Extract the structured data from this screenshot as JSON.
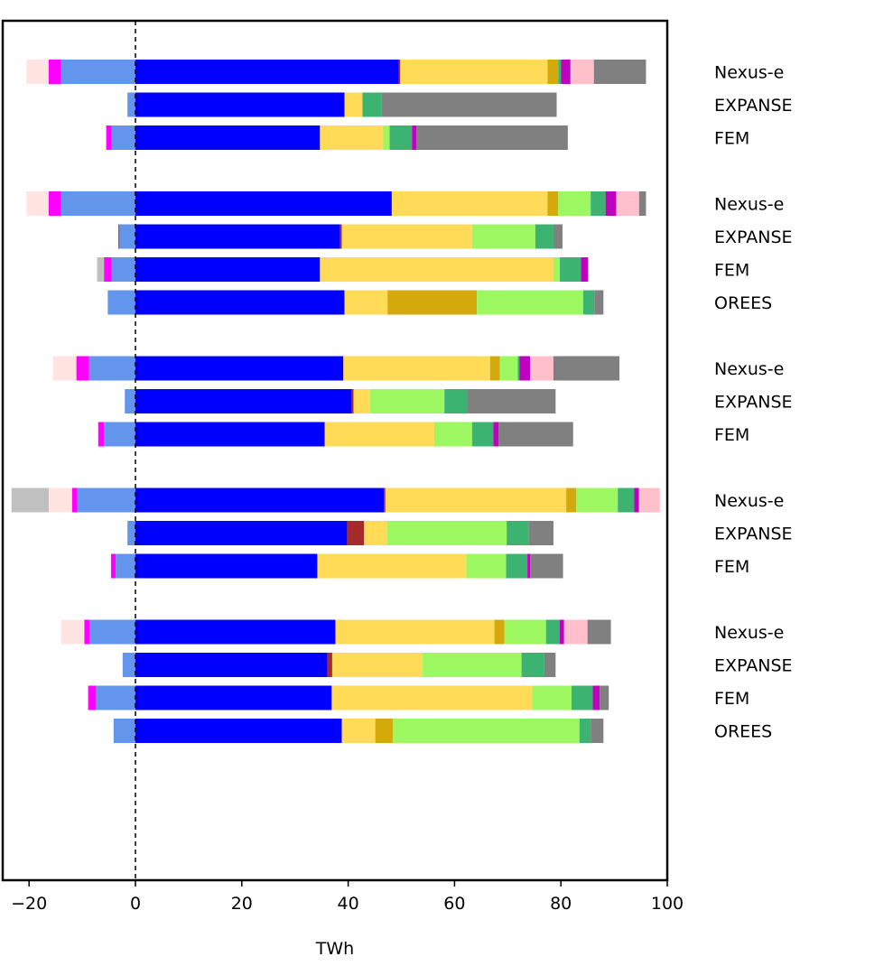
{
  "chart_data": {
    "type": "bar",
    "orientation": "horizontal",
    "stacked": true,
    "title": "",
    "xlabel": "TWh",
    "ylabel": "",
    "xlim": [
      -25,
      100
    ],
    "xticks": [
      -20,
      0,
      20,
      40,
      60,
      80,
      100
    ],
    "xtick_labels": [
      "−20",
      "0",
      "20",
      "40",
      "60",
      "80",
      "100"
    ],
    "reference_line": 0,
    "grid": false,
    "legend": null,
    "rows": [
      {
        "label": "Nexus-e",
        "group": 1,
        "segments": [
          [
            -20.5,
            -16.3,
            "#ffe4e1"
          ],
          [
            -16.3,
            -14.0,
            "#ff00ff"
          ],
          [
            -14.0,
            0,
            "#6495ed"
          ],
          [
            0,
            49.5,
            "#0000ff"
          ],
          [
            49.5,
            49.8,
            "#a52a2a"
          ],
          [
            49.8,
            77.5,
            "#ffdb58"
          ],
          [
            77.5,
            79.5,
            "#d4a90c"
          ],
          [
            79.5,
            80.0,
            "#3cb371"
          ],
          [
            80.0,
            81.8,
            "#bf00bf"
          ],
          [
            81.8,
            86.2,
            "#ffc0cb"
          ],
          [
            86.2,
            96.0,
            "#808080"
          ]
        ]
      },
      {
        "label": "EXPANSE",
        "group": 1,
        "segments": [
          [
            -1.5,
            0,
            "#6495ed"
          ],
          [
            0,
            39.3,
            "#0000ff"
          ],
          [
            39.3,
            42.7,
            "#ffdb58"
          ],
          [
            42.7,
            46.3,
            "#3cb371"
          ],
          [
            46.3,
            79.2,
            "#808080"
          ]
        ]
      },
      {
        "label": "FEM",
        "group": 1,
        "segments": [
          [
            -5.5,
            -4.5,
            "#ff00ff"
          ],
          [
            -4.5,
            0,
            "#6495ed"
          ],
          [
            0,
            34.7,
            "#0000ff"
          ],
          [
            34.7,
            46.6,
            "#ffdb58"
          ],
          [
            46.6,
            47.8,
            "#9cf760"
          ],
          [
            47.8,
            52.0,
            "#3cb371"
          ],
          [
            52.0,
            52.8,
            "#bf00bf"
          ],
          [
            52.8,
            81.3,
            "#808080"
          ]
        ]
      },
      {
        "label": "Nexus-e",
        "group": 2,
        "segments": [
          [
            -20.5,
            -16.3,
            "#ffe4e1"
          ],
          [
            -16.3,
            -14.0,
            "#ff00ff"
          ],
          [
            -14.0,
            0,
            "#6495ed"
          ],
          [
            0,
            48.2,
            "#0000ff"
          ],
          [
            48.2,
            77.5,
            "#ffdb58"
          ],
          [
            77.5,
            79.5,
            "#d4a90c"
          ],
          [
            79.5,
            85.6,
            "#9cf760"
          ],
          [
            85.6,
            88.4,
            "#3cb371"
          ],
          [
            88.4,
            90.4,
            "#bf00bf"
          ],
          [
            90.4,
            94.7,
            "#ffc0cb"
          ],
          [
            94.7,
            96.0,
            "#808080"
          ]
        ]
      },
      {
        "label": "EXPANSE",
        "group": 2,
        "segments": [
          [
            -3.2,
            -3.0,
            "#a52a2a"
          ],
          [
            -3.0,
            0,
            "#6495ed"
          ],
          [
            0,
            38.5,
            "#0000ff"
          ],
          [
            38.5,
            38.8,
            "#a52a2a"
          ],
          [
            38.8,
            63.3,
            "#ffdb58"
          ],
          [
            63.3,
            75.2,
            "#9cf760"
          ],
          [
            75.2,
            78.6,
            "#3cb371"
          ],
          [
            78.6,
            80.3,
            "#808080"
          ]
        ]
      },
      {
        "label": "FEM",
        "group": 2,
        "segments": [
          [
            -7.2,
            -5.9,
            "#c0c0c0"
          ],
          [
            -5.9,
            -4.5,
            "#ff00ff"
          ],
          [
            -4.5,
            0,
            "#6495ed"
          ],
          [
            0,
            34.7,
            "#0000ff"
          ],
          [
            34.7,
            78.6,
            "#ffdb58"
          ],
          [
            78.6,
            79.8,
            "#9cf760"
          ],
          [
            79.8,
            83.8,
            "#3cb371"
          ],
          [
            83.8,
            85.1,
            "#bf00bf"
          ]
        ]
      },
      {
        "label": "OREES",
        "group": 2,
        "segments": [
          [
            -5.2,
            0,
            "#6495ed"
          ],
          [
            0,
            39.3,
            "#0000ff"
          ],
          [
            39.3,
            47.4,
            "#ffdb58"
          ],
          [
            47.4,
            64.2,
            "#d4a90c"
          ],
          [
            64.2,
            84.2,
            "#9cf760"
          ],
          [
            84.2,
            86.3,
            "#3cb371"
          ],
          [
            86.3,
            88.0,
            "#808080"
          ]
        ]
      },
      {
        "label": "Nexus-e",
        "group": 3,
        "segments": [
          [
            -15.5,
            -11.1,
            "#ffe4e1"
          ],
          [
            -11.1,
            -8.7,
            "#ff00ff"
          ],
          [
            -8.7,
            0,
            "#6495ed"
          ],
          [
            0,
            39.1,
            "#0000ff"
          ],
          [
            39.1,
            66.7,
            "#ffdb58"
          ],
          [
            66.7,
            68.5,
            "#d4a90c"
          ],
          [
            68.5,
            71.9,
            "#9cf760"
          ],
          [
            71.9,
            72.2,
            "#3cb371"
          ],
          [
            72.2,
            74.2,
            "#bf00bf"
          ],
          [
            74.2,
            78.6,
            "#ffc0cb"
          ],
          [
            78.6,
            91.0,
            "#808080"
          ]
        ]
      },
      {
        "label": "EXPANSE",
        "group": 3,
        "segments": [
          [
            -2.0,
            0,
            "#6495ed"
          ],
          [
            0,
            40.7,
            "#0000ff"
          ],
          [
            40.7,
            41.0,
            "#a52a2a"
          ],
          [
            41.0,
            44.1,
            "#ffdb58"
          ],
          [
            44.1,
            58.1,
            "#9cf760"
          ],
          [
            58.1,
            62.4,
            "#3cb371"
          ],
          [
            62.4,
            79.0,
            "#808080"
          ]
        ]
      },
      {
        "label": "FEM",
        "group": 3,
        "segments": [
          [
            -7.0,
            -5.9,
            "#ff00ff"
          ],
          [
            -5.9,
            0,
            "#6495ed"
          ],
          [
            0,
            35.6,
            "#0000ff"
          ],
          [
            35.6,
            56.2,
            "#ffdb58"
          ],
          [
            56.2,
            63.3,
            "#9cf760"
          ],
          [
            63.3,
            67.3,
            "#3cb371"
          ],
          [
            67.3,
            68.3,
            "#bf00bf"
          ],
          [
            68.3,
            82.3,
            "#808080"
          ]
        ]
      },
      {
        "label": "Nexus-e",
        "group": 4,
        "segments": [
          [
            -23.3,
            -16.3,
            "#c0c0c0"
          ],
          [
            -16.3,
            -11.9,
            "#ffe4e1"
          ],
          [
            -11.9,
            -10.9,
            "#ff00ff"
          ],
          [
            -10.9,
            0,
            "#6495ed"
          ],
          [
            0,
            46.7,
            "#0000ff"
          ],
          [
            46.7,
            47.0,
            "#a52a2a"
          ],
          [
            47.0,
            81.0,
            "#ffdb58"
          ],
          [
            81.0,
            82.9,
            "#d4a90c"
          ],
          [
            82.9,
            90.7,
            "#9cf760"
          ],
          [
            90.7,
            93.8,
            "#3cb371"
          ],
          [
            93.8,
            94.7,
            "#bf00bf"
          ],
          [
            94.7,
            98.6,
            "#ffc0cb"
          ]
        ]
      },
      {
        "label": "EXPANSE",
        "group": 4,
        "segments": [
          [
            -1.5,
            0,
            "#6495ed"
          ],
          [
            0,
            39.8,
            "#0000ff"
          ],
          [
            39.8,
            43.0,
            "#a52a2a"
          ],
          [
            43.0,
            47.3,
            "#ffdb58"
          ],
          [
            47.3,
            69.8,
            "#9cf760"
          ],
          [
            69.8,
            74.0,
            "#3cb371"
          ],
          [
            74.0,
            78.6,
            "#808080"
          ]
        ]
      },
      {
        "label": "FEM",
        "group": 4,
        "segments": [
          [
            -4.6,
            -3.7,
            "#ff00ff"
          ],
          [
            -3.7,
            0,
            "#6495ed"
          ],
          [
            0,
            34.2,
            "#0000ff"
          ],
          [
            34.2,
            62.2,
            "#ffdb58"
          ],
          [
            62.2,
            69.7,
            "#9cf760"
          ],
          [
            69.7,
            73.7,
            "#3cb371"
          ],
          [
            73.7,
            74.2,
            "#bf00bf"
          ],
          [
            74.2,
            80.4,
            "#808080"
          ]
        ]
      },
      {
        "label": "Nexus-e",
        "group": 5,
        "segments": [
          [
            -14.0,
            -9.6,
            "#ffe4e1"
          ],
          [
            -9.6,
            -8.6,
            "#ff00ff"
          ],
          [
            -8.6,
            0,
            "#6495ed"
          ],
          [
            0,
            37.6,
            "#0000ff"
          ],
          [
            37.6,
            67.5,
            "#ffdb58"
          ],
          [
            67.5,
            69.4,
            "#d4a90c"
          ],
          [
            69.4,
            77.2,
            "#9cf760"
          ],
          [
            77.2,
            79.8,
            "#3cb371"
          ],
          [
            79.8,
            80.6,
            "#bf00bf"
          ],
          [
            80.6,
            85.0,
            "#ffc0cb"
          ],
          [
            85.0,
            89.4,
            "#808080"
          ]
        ]
      },
      {
        "label": "EXPANSE",
        "group": 5,
        "segments": [
          [
            -2.4,
            0,
            "#6495ed"
          ],
          [
            0,
            36.1,
            "#0000ff"
          ],
          [
            36.1,
            37.0,
            "#a52a2a"
          ],
          [
            37.0,
            54.0,
            "#ffdb58"
          ],
          [
            54.0,
            72.6,
            "#9cf760"
          ],
          [
            72.6,
            76.9,
            "#3cb371"
          ],
          [
            76.9,
            79.0,
            "#808080"
          ]
        ]
      },
      {
        "label": "FEM",
        "group": 5,
        "segments": [
          [
            -8.9,
            -7.4,
            "#ff00ff"
          ],
          [
            -7.4,
            0,
            "#6495ed"
          ],
          [
            0,
            36.9,
            "#0000ff"
          ],
          [
            36.9,
            74.6,
            "#ffdb58"
          ],
          [
            74.6,
            82.0,
            "#9cf760"
          ],
          [
            82.0,
            86.0,
            "#3cb371"
          ],
          [
            86.0,
            87.3,
            "#bf00bf"
          ],
          [
            87.3,
            89.0,
            "#808080"
          ]
        ]
      },
      {
        "label": "OREES",
        "group": 5,
        "segments": [
          [
            -4.1,
            0,
            "#6495ed"
          ],
          [
            0,
            38.8,
            "#0000ff"
          ],
          [
            38.8,
            45.1,
            "#ffdb58"
          ],
          [
            45.1,
            48.4,
            "#d4a90c"
          ],
          [
            48.4,
            83.5,
            "#9cf760"
          ],
          [
            83.5,
            85.6,
            "#3cb371"
          ],
          [
            85.6,
            88.0,
            "#808080"
          ]
        ]
      }
    ]
  }
}
